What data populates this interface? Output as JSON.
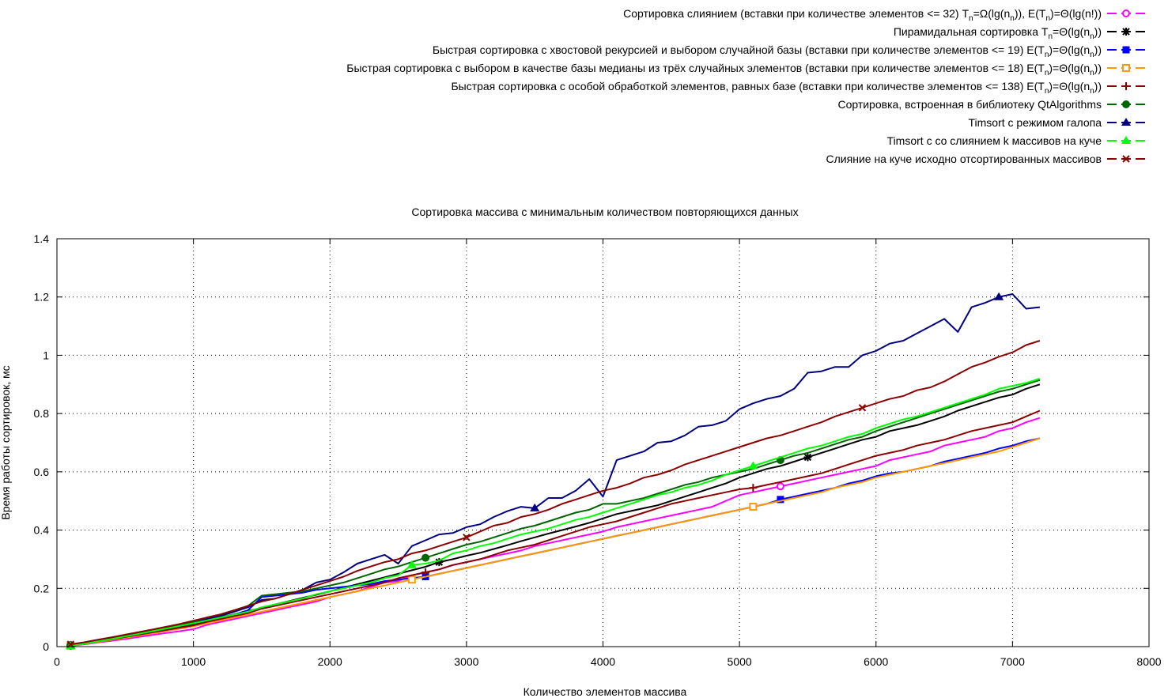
{
  "chart_data": {
    "type": "line",
    "title": "Сортировка массива с минимальным количеством повторяющихся данных",
    "xlabel": "Количество элементов массива",
    "ylabel": "Время работы сортировок, мс",
    "xlim": [
      0,
      8000
    ],
    "ylim": [
      0,
      1.4
    ],
    "xticks": [
      "0",
      "1000",
      "2000",
      "3000",
      "4000",
      "5000",
      "6000",
      "7000",
      "8000"
    ],
    "yticks": [
      "0",
      "0.2",
      "0.4",
      "0.6",
      "0.8",
      "1",
      "1.2",
      "1.4"
    ],
    "grid": true,
    "legend_position": "top-right",
    "x": [
      100,
      200,
      300,
      400,
      500,
      600,
      700,
      800,
      900,
      1000,
      1100,
      1200,
      1300,
      1400,
      1500,
      1600,
      1700,
      1800,
      1900,
      2000,
      2100,
      2200,
      2300,
      2400,
      2500,
      2600,
      2700,
      2800,
      2900,
      3000,
      3100,
      3200,
      3300,
      3400,
      3500,
      3600,
      3700,
      3800,
      3900,
      4000,
      4100,
      4200,
      4300,
      4400,
      4500,
      4600,
      4700,
      4800,
      4900,
      5000,
      5100,
      5200,
      5300,
      5400,
      5500,
      5600,
      5700,
      5800,
      5900,
      6000,
      6100,
      6200,
      6300,
      6400,
      6500,
      6600,
      6700,
      6800,
      6900,
      7000,
      7100,
      7200
    ],
    "series": [
      {
        "name": "merge",
        "legend": [
          "Сортировка слиянием (вставки при количестве элементов <= 32) T",
          "n",
          "=Ω(lg(n",
          "n",
          ")), E(T",
          "n",
          ")=Θ(lg(n!))"
        ],
        "color": "#ff00ff",
        "marker": "circle-open",
        "marker_x": [
          100,
          5300
        ],
        "values": [
          0.003,
          0.008,
          0.014,
          0.02,
          0.026,
          0.033,
          0.04,
          0.047,
          0.053,
          0.06,
          0.075,
          0.085,
          0.095,
          0.105,
          0.115,
          0.125,
          0.135,
          0.145,
          0.155,
          0.17,
          0.18,
          0.19,
          0.205,
          0.22,
          0.225,
          0.245,
          0.255,
          0.265,
          0.28,
          0.29,
          0.3,
          0.31,
          0.32,
          0.33,
          0.345,
          0.355,
          0.365,
          0.375,
          0.385,
          0.395,
          0.41,
          0.42,
          0.43,
          0.44,
          0.45,
          0.46,
          0.47,
          0.48,
          0.5,
          0.52,
          0.53,
          0.54,
          0.55,
          0.56,
          0.57,
          0.58,
          0.59,
          0.6,
          0.61,
          0.62,
          0.64,
          0.65,
          0.66,
          0.67,
          0.69,
          0.7,
          0.71,
          0.72,
          0.74,
          0.75,
          0.77,
          0.785
        ]
      },
      {
        "name": "heap",
        "legend": [
          "Пирамидальная сортировка T",
          "n",
          "=Θ(lg(n",
          "n",
          "))"
        ],
        "color": "#000000",
        "marker": "star",
        "marker_x": [
          100,
          2800,
          5500
        ],
        "values": [
          0.005,
          0.012,
          0.02,
          0.027,
          0.035,
          0.043,
          0.051,
          0.059,
          0.067,
          0.076,
          0.089,
          0.1,
          0.111,
          0.122,
          0.133,
          0.145,
          0.156,
          0.167,
          0.178,
          0.19,
          0.202,
          0.214,
          0.226,
          0.238,
          0.25,
          0.262,
          0.274,
          0.29,
          0.3,
          0.312,
          0.322,
          0.335,
          0.348,
          0.362,
          0.375,
          0.388,
          0.4,
          0.412,
          0.425,
          0.44,
          0.455,
          0.465,
          0.475,
          0.485,
          0.5,
          0.515,
          0.53,
          0.545,
          0.56,
          0.58,
          0.595,
          0.61,
          0.62,
          0.635,
          0.65,
          0.665,
          0.68,
          0.695,
          0.71,
          0.72,
          0.74,
          0.75,
          0.76,
          0.775,
          0.79,
          0.81,
          0.825,
          0.84,
          0.855,
          0.865,
          0.885,
          0.9
        ]
      },
      {
        "name": "quick-tail",
        "legend": [
          "Быстрая сортировка с хвостовой рекурсией и выбором случайной базы (вставки при количестве элементов <= 19) E(T",
          "n",
          ")=Θ(lg(n",
          "n",
          "))"
        ],
        "color": "#0000ff",
        "marker": "square",
        "marker_x": [
          100,
          2700,
          5300
        ],
        "values": [
          0.003,
          0.009,
          0.016,
          0.023,
          0.03,
          0.038,
          0.046,
          0.054,
          0.062,
          0.07,
          0.085,
          0.095,
          0.11,
          0.125,
          0.17,
          0.175,
          0.18,
          0.185,
          0.195,
          0.2,
          0.205,
          0.21,
          0.215,
          0.225,
          0.23,
          0.235,
          0.24,
          0.25,
          0.26,
          0.27,
          0.28,
          0.29,
          0.3,
          0.31,
          0.32,
          0.33,
          0.34,
          0.35,
          0.36,
          0.37,
          0.38,
          0.39,
          0.4,
          0.41,
          0.42,
          0.43,
          0.44,
          0.45,
          0.46,
          0.47,
          0.48,
          0.49,
          0.505,
          0.515,
          0.525,
          0.535,
          0.545,
          0.56,
          0.57,
          0.585,
          0.595,
          0.6,
          0.61,
          0.62,
          0.635,
          0.645,
          0.655,
          0.665,
          0.68,
          0.69,
          0.705,
          0.715
        ]
      },
      {
        "name": "quick-median3",
        "legend": [
          "Быстрая сортировка с выбором в качестве базы медианы из трёх случайных элементов (вставки при количестве элементов <= 18) E(T",
          "n",
          ")=Θ(lg(n",
          "n",
          "))"
        ],
        "color": "#ff9900",
        "marker": "square-open",
        "marker_x": [
          100,
          2600,
          5100
        ],
        "values": [
          0.003,
          0.009,
          0.016,
          0.023,
          0.03,
          0.038,
          0.046,
          0.054,
          0.062,
          0.07,
          0.08,
          0.09,
          0.1,
          0.11,
          0.12,
          0.13,
          0.14,
          0.15,
          0.16,
          0.17,
          0.18,
          0.19,
          0.2,
          0.21,
          0.22,
          0.23,
          0.24,
          0.25,
          0.26,
          0.27,
          0.28,
          0.29,
          0.3,
          0.31,
          0.32,
          0.33,
          0.34,
          0.35,
          0.36,
          0.37,
          0.38,
          0.39,
          0.4,
          0.41,
          0.42,
          0.43,
          0.44,
          0.45,
          0.46,
          0.47,
          0.48,
          0.49,
          0.5,
          0.51,
          0.52,
          0.53,
          0.545,
          0.555,
          0.565,
          0.58,
          0.59,
          0.6,
          0.61,
          0.62,
          0.63,
          0.64,
          0.65,
          0.66,
          0.67,
          0.685,
          0.7,
          0.715
        ]
      },
      {
        "name": "quick-3way",
        "legend": [
          "Быстрая сортировка с особой обработкой элементов, равных базе (вставки при количестве элементов <= 138) E(T",
          "n",
          ")=Θ(lg(n",
          "n",
          "))"
        ],
        "color": "#8b0000",
        "marker": "plus",
        "marker_x": [
          100,
          2700,
          5100
        ],
        "values": [
          0.004,
          0.01,
          0.018,
          0.025,
          0.033,
          0.041,
          0.049,
          0.057,
          0.065,
          0.073,
          0.085,
          0.095,
          0.105,
          0.115,
          0.13,
          0.14,
          0.15,
          0.16,
          0.17,
          0.18,
          0.19,
          0.2,
          0.21,
          0.22,
          0.235,
          0.245,
          0.255,
          0.265,
          0.28,
          0.29,
          0.3,
          0.315,
          0.33,
          0.34,
          0.35,
          0.365,
          0.38,
          0.395,
          0.41,
          0.42,
          0.43,
          0.445,
          0.46,
          0.475,
          0.49,
          0.5,
          0.51,
          0.52,
          0.53,
          0.54,
          0.545,
          0.555,
          0.565,
          0.575,
          0.585,
          0.595,
          0.61,
          0.625,
          0.64,
          0.655,
          0.665,
          0.675,
          0.69,
          0.7,
          0.71,
          0.725,
          0.74,
          0.75,
          0.76,
          0.77,
          0.79,
          0.81
        ]
      },
      {
        "name": "qt",
        "legend": [
          "Сортировка, встроенная в библиотеку QtAlgorithms"
        ],
        "color": "#006400",
        "marker": "circle",
        "marker_x": [
          100,
          2700,
          5300
        ],
        "values": [
          0.005,
          0.013,
          0.021,
          0.029,
          0.038,
          0.047,
          0.056,
          0.065,
          0.074,
          0.085,
          0.1,
          0.11,
          0.125,
          0.14,
          0.175,
          0.18,
          0.185,
          0.19,
          0.2,
          0.21,
          0.22,
          0.235,
          0.25,
          0.265,
          0.275,
          0.29,
          0.305,
          0.32,
          0.335,
          0.35,
          0.36,
          0.375,
          0.39,
          0.405,
          0.415,
          0.43,
          0.445,
          0.46,
          0.47,
          0.49,
          0.49,
          0.5,
          0.51,
          0.525,
          0.54,
          0.555,
          0.565,
          0.58,
          0.59,
          0.6,
          0.61,
          0.625,
          0.64,
          0.655,
          0.665,
          0.68,
          0.695,
          0.71,
          0.72,
          0.74,
          0.755,
          0.77,
          0.785,
          0.8,
          0.815,
          0.83,
          0.845,
          0.86,
          0.875,
          0.885,
          0.9,
          0.915
        ]
      },
      {
        "name": "timsort-gallop",
        "legend": [
          "Timsort с режимом галопа"
        ],
        "color": "#000080",
        "marker": "triangle",
        "marker_x": [
          100,
          3500,
          6900
        ],
        "values": [
          0.004,
          0.011,
          0.019,
          0.027,
          0.035,
          0.044,
          0.053,
          0.062,
          0.071,
          0.08,
          0.095,
          0.105,
          0.12,
          0.135,
          0.16,
          0.165,
          0.18,
          0.195,
          0.22,
          0.23,
          0.255,
          0.285,
          0.3,
          0.315,
          0.285,
          0.345,
          0.365,
          0.385,
          0.39,
          0.41,
          0.42,
          0.445,
          0.465,
          0.48,
          0.475,
          0.51,
          0.51,
          0.535,
          0.575,
          0.515,
          0.64,
          0.655,
          0.67,
          0.7,
          0.705,
          0.725,
          0.755,
          0.76,
          0.775,
          0.815,
          0.835,
          0.85,
          0.86,
          0.885,
          0.94,
          0.945,
          0.96,
          0.96,
          1.0,
          1.015,
          1.04,
          1.05,
          1.075,
          1.1,
          1.125,
          1.08,
          1.165,
          1.18,
          1.2,
          1.21,
          1.16,
          1.165
        ]
      },
      {
        "name": "timsort-kmerge",
        "legend": [
          "Timsort с со слиянием k массивов на куче"
        ],
        "color": "#00ff00",
        "marker": "triangle",
        "marker_x": [
          100,
          2600,
          5100
        ],
        "values": [
          0.003,
          0.01,
          0.018,
          0.026,
          0.035,
          0.044,
          0.053,
          0.062,
          0.071,
          0.08,
          0.09,
          0.1,
          0.11,
          0.12,
          0.135,
          0.145,
          0.155,
          0.165,
          0.18,
          0.19,
          0.2,
          0.21,
          0.22,
          0.235,
          0.245,
          0.28,
          0.285,
          0.295,
          0.32,
          0.33,
          0.345,
          0.355,
          0.37,
          0.385,
          0.395,
          0.405,
          0.42,
          0.435,
          0.445,
          0.46,
          0.475,
          0.49,
          0.505,
          0.52,
          0.53,
          0.545,
          0.555,
          0.57,
          0.59,
          0.605,
          0.62,
          0.635,
          0.65,
          0.665,
          0.68,
          0.69,
          0.705,
          0.72,
          0.73,
          0.75,
          0.765,
          0.78,
          0.79,
          0.805,
          0.82,
          0.835,
          0.85,
          0.865,
          0.885,
          0.895,
          0.905,
          0.92
        ]
      },
      {
        "name": "heap-merge",
        "legend": [
          "Слияние на куче исходно отсортированных массивов"
        ],
        "color": "#8b0000",
        "marker": "cross",
        "marker_x": [
          100,
          3000,
          5900
        ],
        "values": [
          0.008,
          0.015,
          0.024,
          0.032,
          0.041,
          0.05,
          0.059,
          0.068,
          0.078,
          0.089,
          0.1,
          0.111,
          0.125,
          0.14,
          0.155,
          0.165,
          0.18,
          0.195,
          0.21,
          0.225,
          0.24,
          0.26,
          0.275,
          0.29,
          0.3,
          0.32,
          0.33,
          0.345,
          0.36,
          0.375,
          0.395,
          0.415,
          0.425,
          0.445,
          0.455,
          0.47,
          0.49,
          0.505,
          0.52,
          0.535,
          0.545,
          0.56,
          0.58,
          0.59,
          0.605,
          0.625,
          0.64,
          0.655,
          0.67,
          0.685,
          0.7,
          0.715,
          0.725,
          0.74,
          0.755,
          0.77,
          0.79,
          0.805,
          0.82,
          0.835,
          0.85,
          0.86,
          0.88,
          0.89,
          0.91,
          0.935,
          0.96,
          0.975,
          0.995,
          1.01,
          1.035,
          1.05
        ]
      }
    ]
  }
}
